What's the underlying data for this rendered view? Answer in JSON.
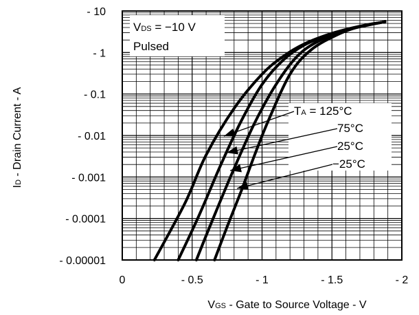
{
  "chart_data": {
    "type": "line",
    "title": "",
    "xlabel_main": "V",
    "xlabel_sub": "GS",
    "xlabel_rest": " - Gate to Source Voltage - V",
    "ylabel_main": "I",
    "ylabel_sub": "D",
    "ylabel_rest": " - Drain Current - A",
    "x_ticks": [
      "0",
      "- 0.5",
      "- 1",
      "- 1.5",
      "- 2"
    ],
    "y_ticks": [
      "- 0.00001",
      "- 0.0001",
      "- 0.001",
      "- 0.01",
      "- 0.1",
      "- 1",
      "- 10"
    ],
    "xlim": [
      0,
      -2
    ],
    "ylim": [
      -1e-05,
      -10
    ],
    "y_scale": "log",
    "grid": true,
    "legend": {
      "vds_main": "V",
      "vds_sub": "DS",
      "vds_rest": " = −10 V",
      "mode": "Pulsed"
    },
    "series": [
      {
        "name_prefix": "T",
        "name_sub": "A",
        "name": " = 125°C",
        "points": [
          [
            -0.23,
            -1e-05
          ],
          [
            -0.45,
            -0.00024
          ],
          [
            -0.6,
            -0.0034
          ],
          [
            -0.8,
            -0.045
          ],
          [
            -1.0,
            -0.3
          ],
          [
            -1.15,
            -0.8
          ],
          [
            -1.3,
            -1.6
          ],
          [
            -1.5,
            -2.9
          ],
          [
            -1.7,
            -4.3
          ],
          [
            -1.88,
            -5.5
          ]
        ]
      },
      {
        "name": "75°C",
        "points": [
          [
            -0.4,
            -1e-05
          ],
          [
            -0.55,
            -0.00012
          ],
          [
            -0.7,
            -0.0018
          ],
          [
            -0.85,
            -0.022
          ],
          [
            -1.0,
            -0.17
          ],
          [
            -1.15,
            -0.65
          ],
          [
            -1.3,
            -1.5
          ],
          [
            -1.5,
            -2.8
          ],
          [
            -1.7,
            -4.2
          ],
          [
            -1.88,
            -5.5
          ]
        ]
      },
      {
        "name": "25°C",
        "points": [
          [
            -0.53,
            -1e-05
          ],
          [
            -0.65,
            -0.0001
          ],
          [
            -0.8,
            -0.0016
          ],
          [
            -0.95,
            -0.021
          ],
          [
            -1.1,
            -0.17
          ],
          [
            -1.25,
            -0.8
          ],
          [
            -1.4,
            -1.85
          ],
          [
            -1.6,
            -3.4
          ],
          [
            -1.75,
            -4.5
          ],
          [
            -1.88,
            -5.5
          ]
        ]
      },
      {
        "name": "−25°C",
        "points": [
          [
            -0.66,
            -1e-05
          ],
          [
            -0.75,
            -6.3e-05
          ],
          [
            -0.85,
            -0.00045
          ],
          [
            -0.95,
            -0.0036
          ],
          [
            -1.05,
            -0.025
          ],
          [
            -1.2,
            -0.3
          ],
          [
            -1.35,
            -1.15
          ],
          [
            -1.55,
            -2.8
          ],
          [
            -1.72,
            -4.4
          ],
          [
            -1.88,
            -5.5
          ]
        ]
      }
    ]
  }
}
